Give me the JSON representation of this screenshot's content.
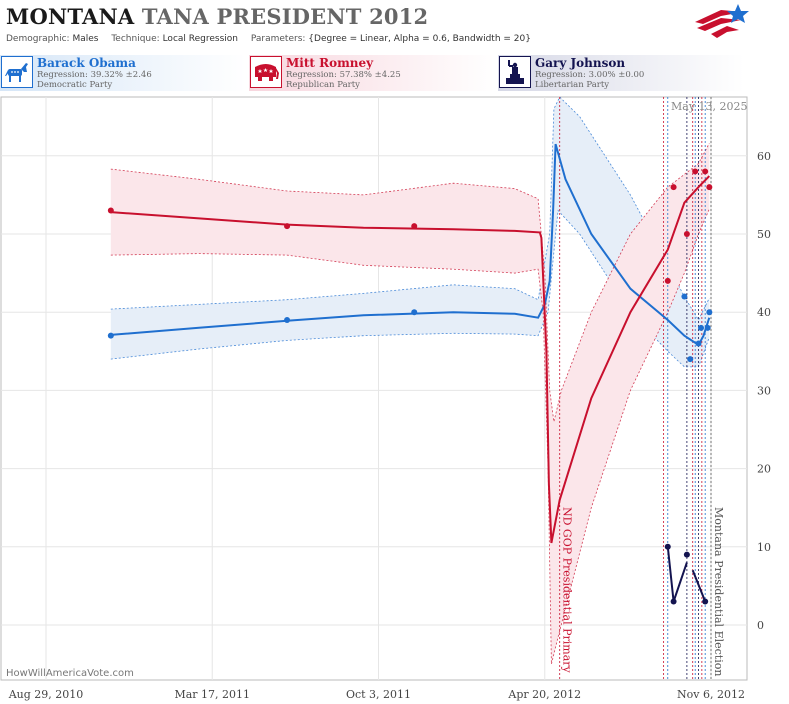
{
  "header": {
    "state": "MONTANA",
    "race": "TANA PRESIDENT 2012",
    "demographic_label": "Demographic:",
    "demographic": "Males",
    "technique_label": "Technique:",
    "technique": "Local Regression",
    "parameters_label": "Parameters:",
    "parameters": "{Degree = Linear, Alpha = 0.6, Bandwidth = 20}"
  },
  "candidates": [
    {
      "name": "Barack Obama",
      "regression": "Regression: 39.32% ±2.46",
      "party": "Democratic Party",
      "color": "#1f6fcf",
      "icon": "donkey-icon"
    },
    {
      "name": "Mitt Romney",
      "regression": "Regression: 57.38% ±4.25",
      "party": "Republican Party",
      "color": "#c8102e",
      "icon": "elephant-icon"
    },
    {
      "name": "Gary Johnson",
      "regression": "Regression: 3.00% ±0.00",
      "party": "Libertarian Party",
      "color": "#141450",
      "icon": "liberty-statue-icon"
    }
  ],
  "datestamp": "May 13, 2025",
  "site": "HowWillAmericaVote.com",
  "chart_data": {
    "type": "line",
    "x_ticks": [
      "Aug 29, 2010",
      "Mar 17, 2011",
      "Oct 3, 2011",
      "Apr 20, 2012",
      "Nov 6, 2012"
    ],
    "x_range": [
      "2010-08-29",
      "2012-11-06"
    ],
    "y_ticks": [
      0,
      10,
      20,
      30,
      40,
      50,
      60
    ],
    "ylim": [
      -5,
      67
    ],
    "y_axis_side": "right",
    "grid": true,
    "events": [
      {
        "date": "2012-05-08",
        "label": "ND GOP Presidential Primary",
        "color": "#c8102e"
      },
      {
        "date": "2012-11-06",
        "label": "Montana Presidential Election",
        "color": "#555555"
      }
    ],
    "poll_lines": [
      {
        "date": "2012-09-10",
        "color": "#c8102e"
      },
      {
        "date": "2012-09-15",
        "color": "#1f6fcf"
      },
      {
        "date": "2012-10-08",
        "color": "#141450"
      },
      {
        "date": "2012-10-15",
        "color": "#c8102e"
      },
      {
        "date": "2012-10-18",
        "color": "#1f6fcf"
      },
      {
        "date": "2012-10-22",
        "color": "#141450"
      },
      {
        "date": "2012-10-26",
        "color": "#c8102e"
      },
      {
        "date": "2012-10-30",
        "color": "#1f6fcf"
      }
    ],
    "series": [
      {
        "name": "Barack Obama",
        "color": "#1f6fcf",
        "band_fill": "#e6eef8",
        "points": [
          [
            "2010-11-15",
            37
          ],
          [
            "2011-06-15",
            39
          ],
          [
            "2011-11-15",
            40
          ],
          [
            "2012-10-05",
            42
          ],
          [
            "2012-10-12",
            34
          ],
          [
            "2012-10-22",
            36
          ],
          [
            "2012-10-25",
            38
          ],
          [
            "2012-11-02",
            38
          ],
          [
            "2012-11-04",
            40
          ]
        ],
        "trend": [
          [
            "2010-11-15",
            37.1
          ],
          [
            "2011-03-01",
            38.0
          ],
          [
            "2011-06-15",
            38.9
          ],
          [
            "2011-09-15",
            39.6
          ],
          [
            "2012-01-01",
            40.0
          ],
          [
            "2012-03-15",
            39.8
          ],
          [
            "2012-04-12",
            39.3
          ],
          [
            "2012-04-20",
            41.0
          ],
          [
            "2012-04-26",
            44.0
          ],
          [
            "2012-04-30",
            53.0
          ],
          [
            "2012-05-03",
            61.5
          ],
          [
            "2012-05-15",
            57.0
          ],
          [
            "2012-06-15",
            50.0
          ],
          [
            "2012-08-01",
            43.0
          ],
          [
            "2012-09-15",
            39.0
          ],
          [
            "2012-10-05",
            37.0
          ],
          [
            "2012-10-22",
            35.8
          ],
          [
            "2012-10-28",
            37.0
          ],
          [
            "2012-11-04",
            39.3
          ]
        ],
        "upper": [
          [
            "2010-11-15",
            40.4
          ],
          [
            "2011-03-01",
            41.0
          ],
          [
            "2011-06-15",
            41.6
          ],
          [
            "2011-09-15",
            42.4
          ],
          [
            "2012-01-01",
            43.5
          ],
          [
            "2012-03-15",
            43.0
          ],
          [
            "2012-04-12",
            41.6
          ],
          [
            "2012-04-26",
            50.0
          ],
          [
            "2012-05-01",
            66.0
          ],
          [
            "2012-05-08",
            70.0
          ],
          [
            "2012-06-01",
            65.0
          ],
          [
            "2012-08-01",
            55.0
          ],
          [
            "2012-09-15",
            46.0
          ],
          [
            "2012-10-05",
            42.0
          ],
          [
            "2012-10-22",
            39.0
          ],
          [
            "2012-11-04",
            41.8
          ]
        ],
        "lower": [
          [
            "2010-11-15",
            34.0
          ],
          [
            "2011-03-01",
            35.3
          ],
          [
            "2011-06-15",
            36.4
          ],
          [
            "2011-09-15",
            37.0
          ],
          [
            "2012-01-01",
            37.3
          ],
          [
            "2012-03-15",
            37.2
          ],
          [
            "2012-04-12",
            37.0
          ],
          [
            "2012-04-24",
            40.0
          ],
          [
            "2012-05-03",
            50.0
          ],
          [
            "2012-05-06",
            53.0
          ],
          [
            "2012-06-01",
            50.0
          ],
          [
            "2012-08-01",
            40.0
          ],
          [
            "2012-09-15",
            35.0
          ],
          [
            "2012-10-05",
            33.0
          ],
          [
            "2012-10-22",
            33.0
          ],
          [
            "2012-11-04",
            36.8
          ]
        ]
      },
      {
        "name": "Mitt Romney",
        "color": "#c8102e",
        "band_fill": "#fbe6ea",
        "points": [
          [
            "2010-11-15",
            53
          ],
          [
            "2011-06-15",
            51
          ],
          [
            "2011-11-15",
            51
          ],
          [
            "2012-09-15",
            44
          ],
          [
            "2012-09-22",
            56
          ],
          [
            "2012-10-08",
            50
          ],
          [
            "2012-10-18",
            58
          ],
          [
            "2012-10-30",
            58
          ],
          [
            "2012-11-04",
            56
          ]
        ],
        "trend": [
          [
            "2010-11-15",
            52.8
          ],
          [
            "2011-03-01",
            52.0
          ],
          [
            "2011-06-15",
            51.2
          ],
          [
            "2011-09-15",
            50.8
          ],
          [
            "2012-01-01",
            50.6
          ],
          [
            "2012-03-15",
            50.4
          ],
          [
            "2012-04-14",
            50.2
          ],
          [
            "2012-04-16",
            49.5
          ],
          [
            "2012-04-22",
            35.0
          ],
          [
            "2012-04-25",
            18.0
          ],
          [
            "2012-04-28",
            10.5
          ],
          [
            "2012-05-08",
            16.0
          ],
          [
            "2012-06-15",
            29.0
          ],
          [
            "2012-08-01",
            40.0
          ],
          [
            "2012-09-15",
            48.0
          ],
          [
            "2012-10-05",
            54.0
          ],
          [
            "2012-10-22",
            56.0
          ],
          [
            "2012-11-04",
            57.4
          ]
        ],
        "upper": [
          [
            "2010-11-15",
            58.3
          ],
          [
            "2011-03-01",
            57.0
          ],
          [
            "2011-06-15",
            55.5
          ],
          [
            "2011-09-15",
            55.0
          ],
          [
            "2012-01-01",
            56.5
          ],
          [
            "2012-03-15",
            55.8
          ],
          [
            "2012-04-12",
            54.5
          ],
          [
            "2012-04-20",
            45.0
          ],
          [
            "2012-04-26",
            30.0
          ],
          [
            "2012-05-01",
            26.0
          ],
          [
            "2012-05-10",
            30.0
          ],
          [
            "2012-06-15",
            40.0
          ],
          [
            "2012-08-01",
            50.0
          ],
          [
            "2012-09-15",
            56.0
          ],
          [
            "2012-10-22",
            59.0
          ],
          [
            "2012-11-04",
            61.6
          ]
        ],
        "lower": [
          [
            "2010-11-15",
            47.3
          ],
          [
            "2011-03-01",
            47.5
          ],
          [
            "2011-06-15",
            47.3
          ],
          [
            "2011-09-15",
            46.0
          ],
          [
            "2012-01-01",
            45.5
          ],
          [
            "2012-03-15",
            45.0
          ],
          [
            "2012-04-12",
            45.5
          ],
          [
            "2012-04-18",
            40.0
          ],
          [
            "2012-04-24",
            20.0
          ],
          [
            "2012-04-28",
            -5.0
          ],
          [
            "2012-05-05",
            -2.0
          ],
          [
            "2012-06-15",
            15.0
          ],
          [
            "2012-08-01",
            30.0
          ],
          [
            "2012-09-15",
            40.0
          ],
          [
            "2012-10-05",
            45.0
          ],
          [
            "2012-10-22",
            50.0
          ],
          [
            "2012-11-04",
            53.2
          ]
        ]
      },
      {
        "name": "Gary Johnson",
        "color": "#141450",
        "points": [
          [
            "2012-09-15",
            10
          ],
          [
            "2012-09-22",
            3
          ],
          [
            "2012-10-08",
            9
          ],
          [
            "2012-10-30",
            3
          ]
        ],
        "segments": [
          [
            [
              "2012-09-15",
              10
            ],
            [
              "2012-09-22",
              3
            ],
            [
              "2012-10-08",
              8
            ]
          ],
          [
            [
              "2012-10-15",
              7
            ],
            [
              "2012-10-30",
              3
            ]
          ]
        ]
      }
    ]
  }
}
